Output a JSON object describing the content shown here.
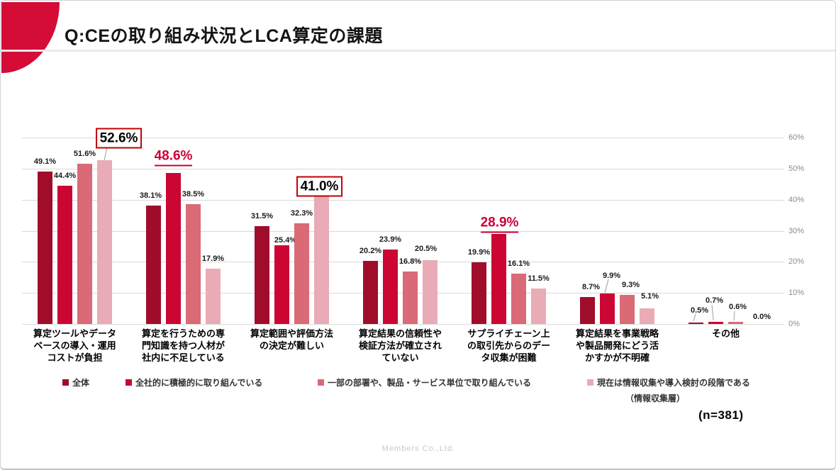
{
  "page": {
    "title": "Q:CEの取り組み状況とLCA算定の課題",
    "sample_size_label": "(n=381)",
    "watermark": "Members Co.,Ltd."
  },
  "chart_data": {
    "type": "bar",
    "title": "Q:CEの取り組み状況とLCA算定の課題",
    "categories": [
      "算定ツールやデータベースの導入・運用コストが負担",
      "算定を行うための専門知識を持つ人材が社内に不足している",
      "算定範囲や評価方法の決定が難しい",
      "算定結果の信頼性や検証方法が確立されていない",
      "サプライチェーン上の取引先からのデータ収集が困難",
      "算定結果を事業戦略や製品開発にどう活かすかが不明確",
      "その他"
    ],
    "category_lines": [
      [
        "算定ツールやデータ",
        "ベースの導入・運用",
        "コストが負担"
      ],
      [
        "算定を行うための専",
        "門知識を持つ人材が",
        "社内に不足している"
      ],
      [
        "算定範囲や評価方法",
        "の決定が難しい"
      ],
      [
        "算定結果の信頼性や",
        "検証方法が確立され",
        "ていない"
      ],
      [
        "サプライチェーン上",
        "の取引先からのデー",
        "タ収集が困難"
      ],
      [
        "算定結果を事業戦略",
        "や製品開発にどう活",
        "かすかが不明確"
      ],
      [
        "その他"
      ]
    ],
    "series": [
      {
        "name": "全体",
        "color": "#A00D2B",
        "values": [
          49.1,
          38.1,
          31.5,
          20.2,
          19.9,
          8.7,
          0.5
        ]
      },
      {
        "name": "全社的に積極的に取り組んでいる",
        "color": "#CB0633",
        "values": [
          44.4,
          48.6,
          25.4,
          23.9,
          28.9,
          9.9,
          0.7
        ]
      },
      {
        "name": "一部の部署や、製品・サービス単位で取り組んでいる",
        "color": "#D96A76",
        "values": [
          51.6,
          38.5,
          32.3,
          16.8,
          16.1,
          9.3,
          0.6
        ]
      },
      {
        "name": "現在は情報収集や導入検討の段階である",
        "color": "#E9ABB5",
        "note": "（情報収集層）",
        "values": [
          52.6,
          17.9,
          41.0,
          20.5,
          11.5,
          5.1,
          0.0
        ]
      }
    ],
    "ylim": [
      0,
      60
    ],
    "y_tick_step": 10,
    "y_tick_labels": [
      "0%",
      "10%",
      "20%",
      "30%",
      "40%",
      "50%",
      "60%"
    ],
    "y_axis_side": "right",
    "grid": true,
    "legend_position": "bottom",
    "value_label_format": "0.0%",
    "highlights": [
      {
        "category_index": 0,
        "series_index": 3,
        "value": 52.6,
        "style": "boxed"
      },
      {
        "category_index": 1,
        "series_index": 1,
        "value": 48.6,
        "style": "red-underline"
      },
      {
        "category_index": 2,
        "series_index": 3,
        "value": 41.0,
        "style": "boxed"
      },
      {
        "category_index": 4,
        "series_index": 1,
        "value": 28.9,
        "style": "red-underline"
      }
    ],
    "colors": {
      "box_border": "#C00000",
      "emphasis_text": "#CC0033",
      "grid": "#D9D9D9",
      "axis_text": "#8A8A8A",
      "corner_accent": "#D40C36"
    },
    "sample_size": "(n=381)"
  }
}
